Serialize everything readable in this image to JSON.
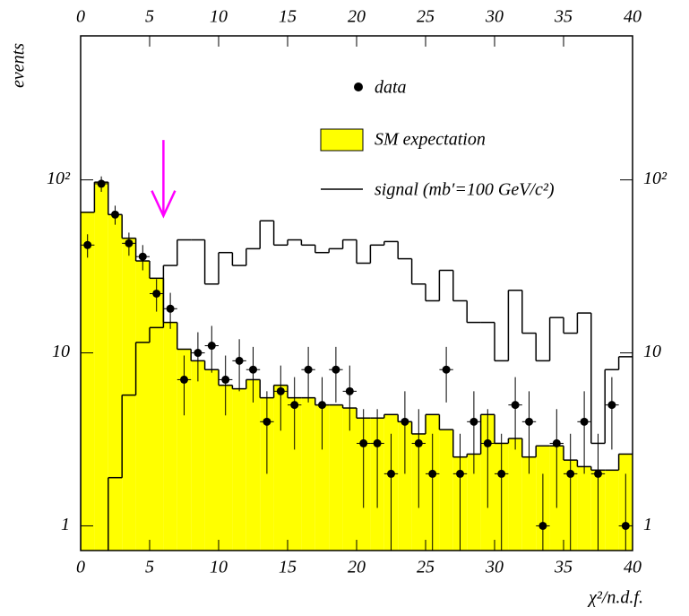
{
  "chart_data": {
    "type": "histogram",
    "xlabel": "χ²/n.d.f.",
    "ylabel": "events",
    "bins": [
      0,
      1,
      2,
      3,
      4,
      5,
      6,
      7,
      8,
      9,
      10,
      11,
      12,
      13,
      14,
      15,
      16,
      17,
      18,
      19,
      20,
      21,
      22,
      23,
      24,
      25,
      26,
      27,
      28,
      29,
      30,
      31,
      32,
      33,
      34,
      35,
      36,
      37,
      38,
      39,
      40
    ],
    "series": [
      {
        "name": "SM expectation",
        "color": "#ffff00",
        "values": [
          65,
          97,
          63,
          46,
          34,
          27,
          15,
          10.5,
          9,
          8,
          6.5,
          6.2,
          7,
          5.5,
          6.5,
          5.5,
          5.5,
          5,
          5,
          4.8,
          4.2,
          4.2,
          4.4,
          4,
          3.4,
          4.4,
          3.6,
          2.5,
          2.6,
          4.4,
          3,
          3.2,
          2.5,
          2.9,
          2.9,
          2.4,
          2.2,
          2.1,
          2.1,
          2.6
        ]
      },
      {
        "name": "signal (mb′=100 GeV/c²)",
        "color": "#000000",
        "values": [
          0,
          0,
          1.9,
          5.7,
          11.5,
          14,
          32,
          45,
          45,
          25,
          38,
          32,
          40,
          58,
          42,
          45,
          42,
          38,
          40,
          45,
          33,
          42,
          44,
          35,
          25,
          20,
          30,
          20,
          15,
          15,
          9,
          23,
          13,
          9,
          16,
          13,
          17,
          3,
          8,
          9.5
        ]
      }
    ],
    "data": {
      "name": "data",
      "color": "#000000",
      "x": [
        0.5,
        1.5,
        2.5,
        3.5,
        4.5,
        5.5,
        6.5,
        7.5,
        8.5,
        9.5,
        10.5,
        11.5,
        12.5,
        13.5,
        14.5,
        15.5,
        16.5,
        17.5,
        18.5,
        19.5,
        20.5,
        21.5,
        22.5,
        23.5,
        24.5,
        25.5,
        26.5,
        27.5,
        28.5,
        29.5,
        30.5,
        31.5,
        32.5,
        33.5,
        34.5,
        35.5,
        36.5,
        37.5,
        38.5,
        39.5
      ],
      "values": [
        42,
        95,
        63,
        43,
        36,
        22,
        18,
        7,
        10,
        11,
        7,
        9,
        8,
        4,
        6,
        5,
        8,
        5,
        8,
        6,
        3,
        3,
        2,
        4,
        3,
        2,
        8,
        2,
        4,
        3,
        2,
        5,
        4,
        1,
        3,
        2,
        4,
        2,
        5,
        1
      ],
      "errors": [
        6.48,
        9.75,
        7.94,
        6.56,
        6,
        4.69,
        4.24,
        2.65,
        3.16,
        3.32,
        2.65,
        3,
        2.83,
        2,
        2.45,
        2.24,
        2.83,
        2.24,
        2.83,
        2.45,
        1.73,
        1.73,
        1.41,
        2,
        1.73,
        1.41,
        2.83,
        1.41,
        2,
        1.73,
        1.41,
        2.24,
        2,
        1,
        1.73,
        1.41,
        2,
        1.41,
        2.24,
        1
      ]
    },
    "annotations": [
      {
        "x": 6,
        "y_from": 170,
        "y_to": 62,
        "color": "#ff00ff"
      }
    ],
    "xlim": [
      0,
      40
    ],
    "xticks": [
      0,
      5,
      10,
      15,
      20,
      25,
      30,
      35,
      40
    ],
    "ylim": [
      0.72,
      680
    ],
    "yticks": [
      1,
      10,
      {
        "value": 100,
        "label": "10²"
      }
    ],
    "log_y": true
  }
}
